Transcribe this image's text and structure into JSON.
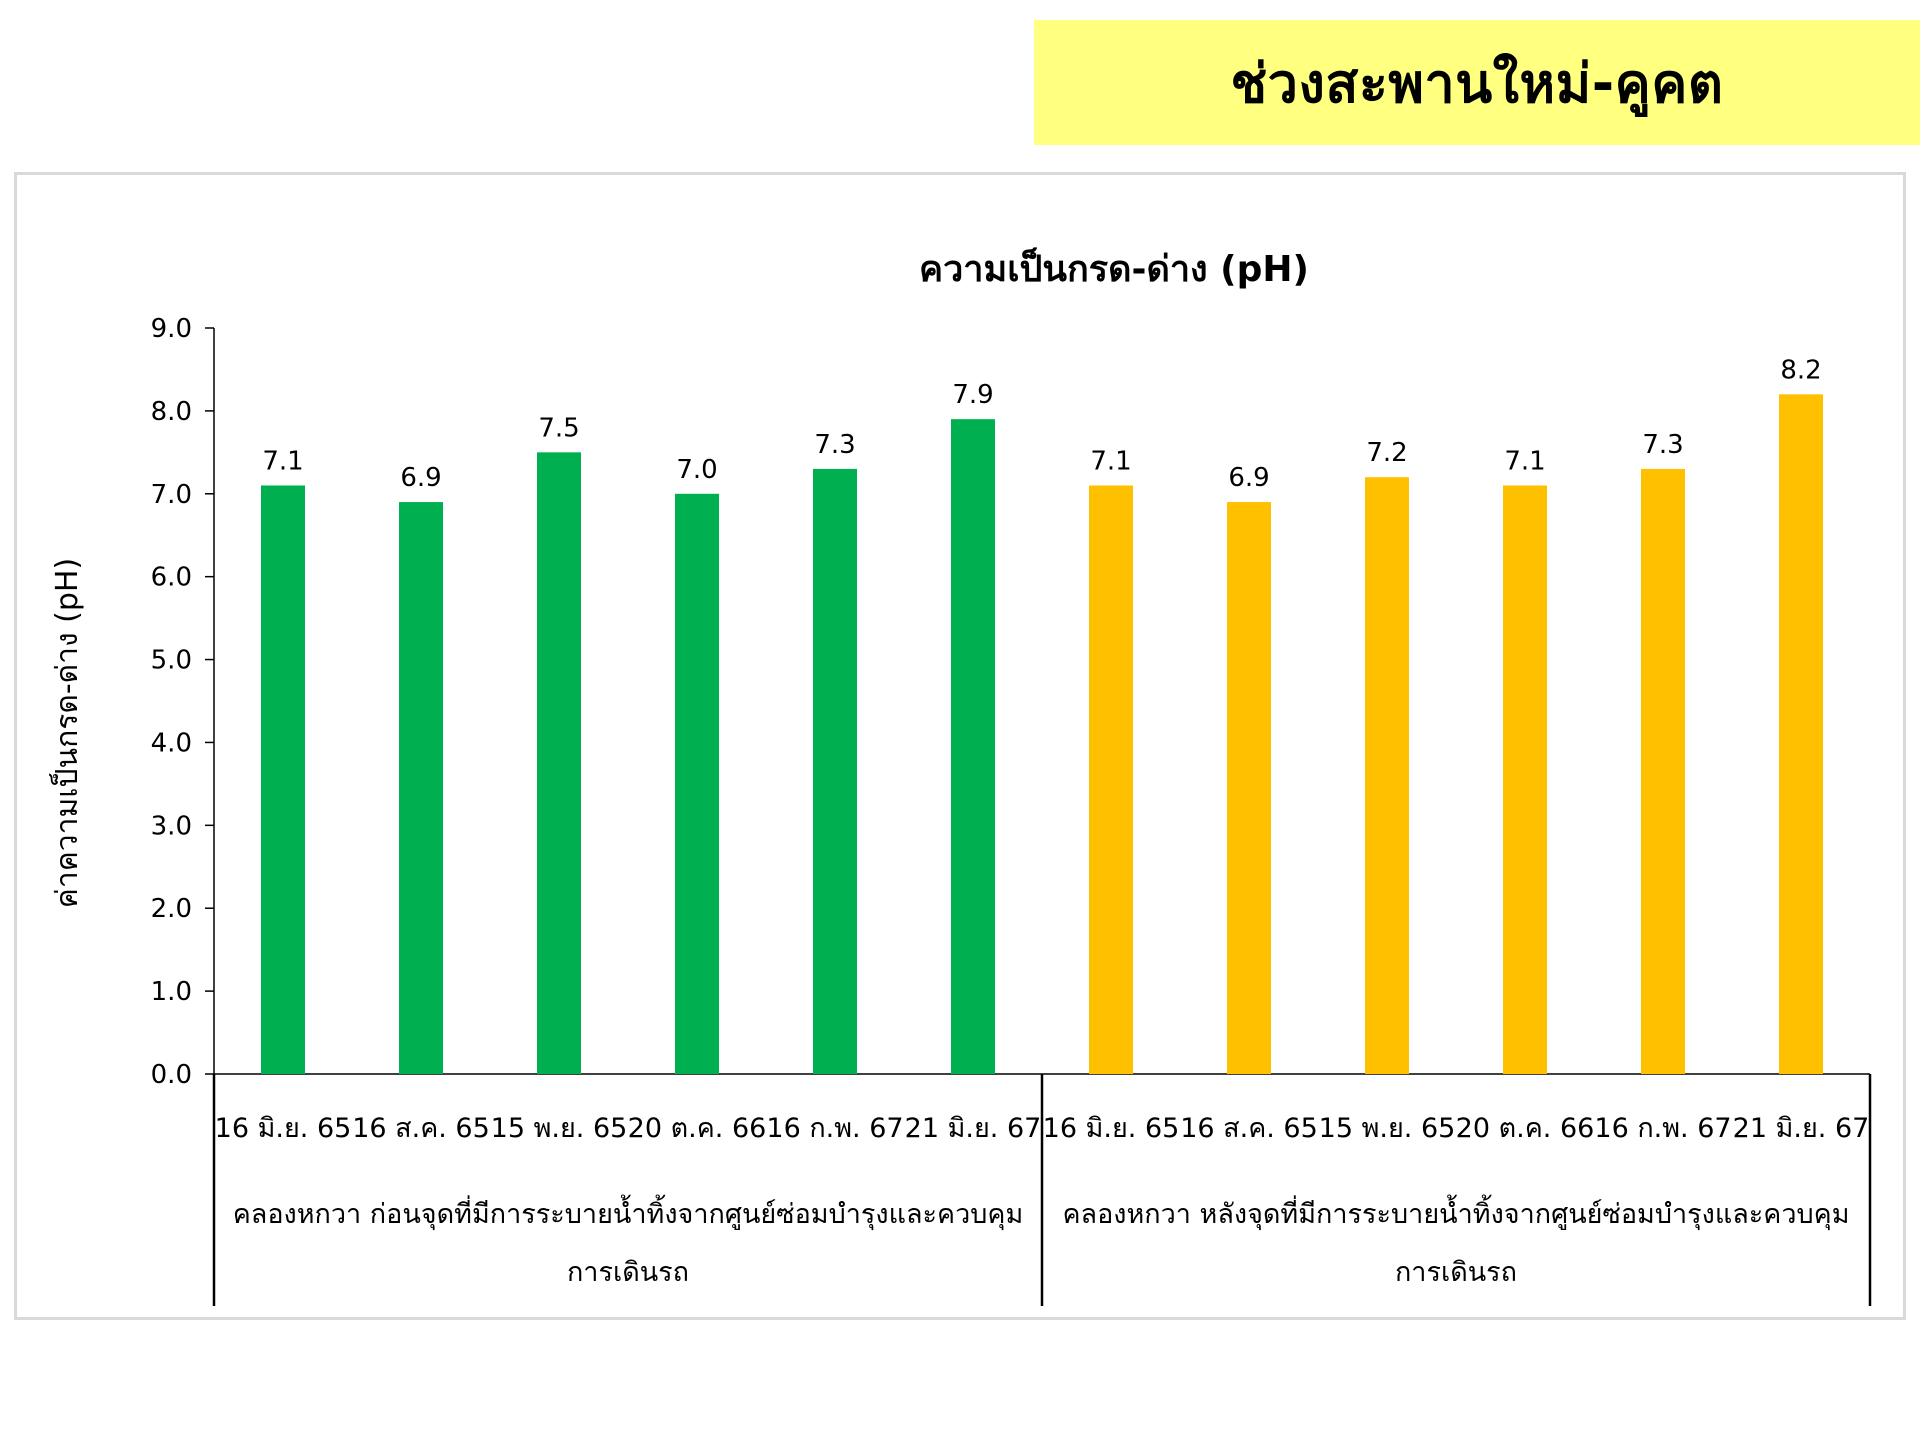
{
  "banner": {
    "title": "ช่วงสะพานใหม่-คูคต"
  },
  "colors": {
    "before_series": "#00b050",
    "after_series": "#ffc000",
    "banner_bg": "#ffff80",
    "frame_border": "#d9d9d9"
  },
  "chart_data": {
    "type": "bar",
    "title": "ความเป็นกรด-ด่าง (pH)",
    "ylabel": "ค่าความเป็นกรด-ด่าง (pH)",
    "xlabel": "",
    "ylim": [
      0,
      9
    ],
    "ytick_step": 1,
    "ytick_labels": [
      "0.0",
      "1.0",
      "2.0",
      "3.0",
      "4.0",
      "5.0",
      "6.0",
      "7.0",
      "8.0",
      "9.0"
    ],
    "grid": false,
    "legend": "none",
    "groups": [
      {
        "label_line1": "คลองหกวา ก่อนจุดที่มีการระบายน้ำทิ้งจากศูนย์ซ่อมบำรุงและควบคุม",
        "label_line2": "การเดินรถ",
        "color": "#00b050",
        "categories": [
          "16 มิ.ย. 65",
          "16 ส.ค. 65",
          "15 พ.ย. 65",
          "20 ต.ค. 66",
          "16 ก.พ. 67",
          "21 มิ.ย. 67"
        ],
        "values": [
          7.1,
          6.9,
          7.5,
          7.0,
          7.3,
          7.9
        ],
        "value_labels": [
          "7.1",
          "6.9",
          "7.5",
          "7.0",
          "7.3",
          "7.9"
        ]
      },
      {
        "label_line1": "คลองหกวา หลังจุดที่มีการระบายน้ำทิ้งจากศูนย์ซ่อมบำรุงและควบคุม",
        "label_line2": "การเดินรถ",
        "color": "#ffc000",
        "categories": [
          "16 มิ.ย. 65",
          "16 ส.ค. 65",
          "15 พ.ย. 65",
          "20 ต.ค. 66",
          "16 ก.พ. 67",
          "21 มิ.ย. 67"
        ],
        "values": [
          7.1,
          6.9,
          7.2,
          7.1,
          7.3,
          8.2
        ],
        "value_labels": [
          "7.1",
          "6.9",
          "7.2",
          "7.1",
          "7.3",
          "8.2"
        ]
      }
    ]
  }
}
